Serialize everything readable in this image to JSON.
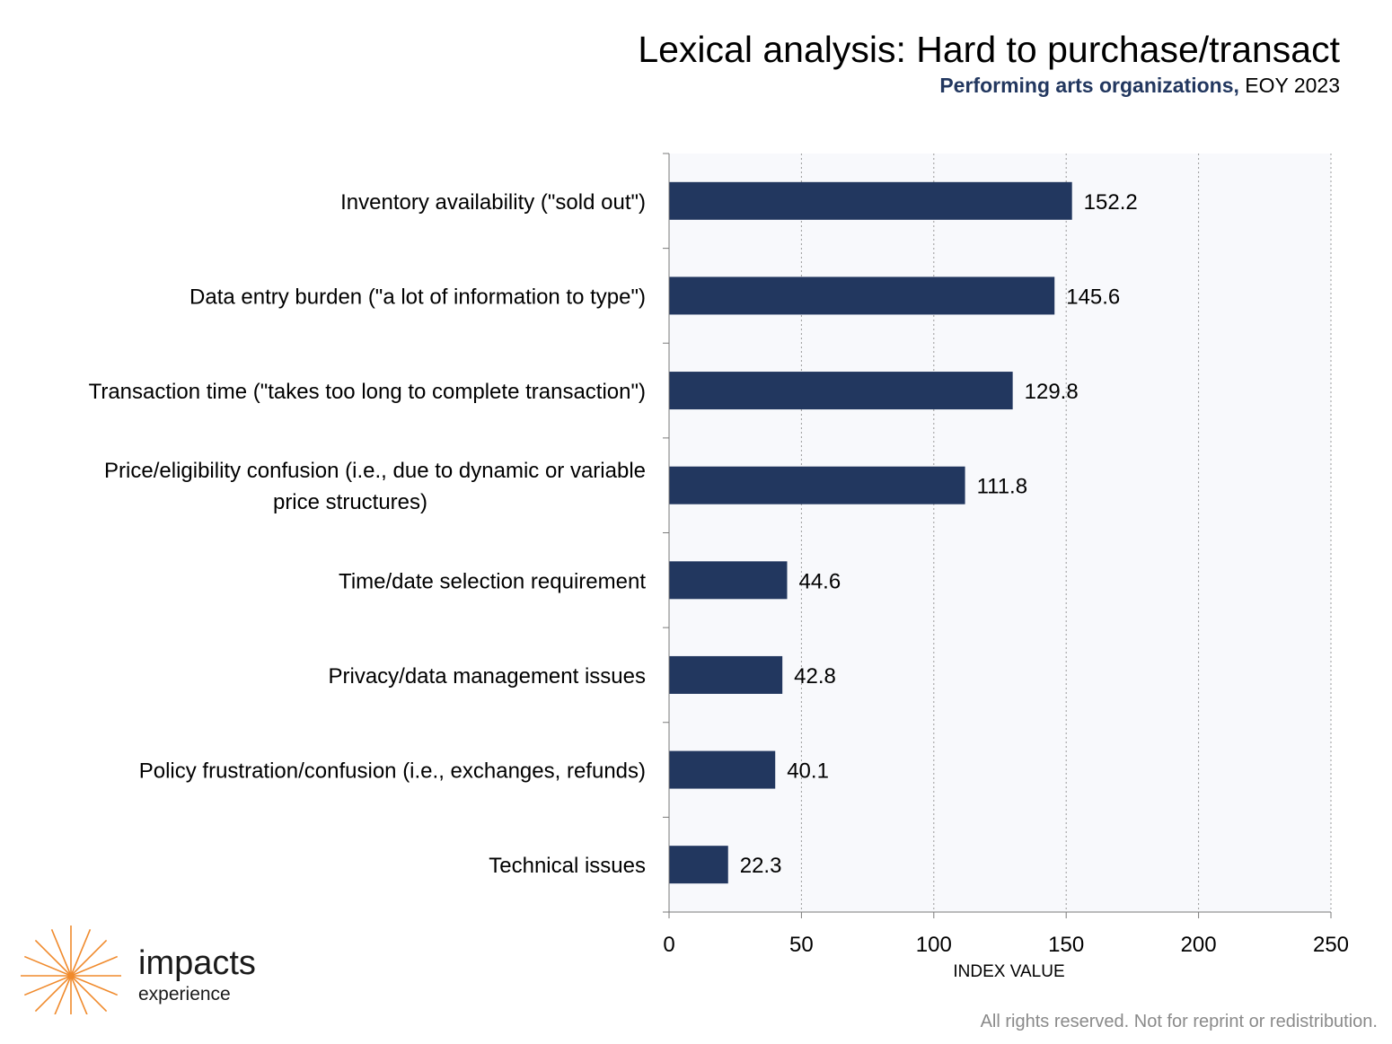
{
  "header": {
    "title": "Lexical analysis: Hard to purchase/transact",
    "subtitle_strong": "Performing arts organizations,",
    "subtitle_rest": " EOY 2023"
  },
  "chart_data": {
    "type": "bar",
    "orientation": "horizontal",
    "categories": [
      "Inventory availability (\"sold out\")",
      "Data entry burden (\"a lot of information to type\")",
      "Transaction time (\"takes too long to complete transaction\")",
      "Price/eligibility confusion (i.e., due to dynamic or variable price structures)",
      "Time/date selection requirement",
      "Privacy/data management issues",
      "Policy frustration/confusion (i.e., exchanges, refunds)",
      "Technical issues"
    ],
    "category_lines": [
      [
        "Inventory availability (\"sold out\")"
      ],
      [
        "Data entry burden (\"a lot of information to type\")"
      ],
      [
        "Transaction time (\"takes too long to complete transaction\")"
      ],
      [
        "Price/eligibility confusion (i.e., due to dynamic or variable",
        "price structures)"
      ],
      [
        "Time/date selection requirement"
      ],
      [
        "Privacy/data management issues"
      ],
      [
        "Policy frustration/confusion (i.e., exchanges, refunds)"
      ],
      [
        "Technical issues"
      ]
    ],
    "values": [
      152.2,
      145.6,
      129.8,
      111.8,
      44.6,
      42.8,
      40.1,
      22.3
    ],
    "data_labels": [
      "152.2",
      "145.6",
      "129.8",
      "111.8",
      "44.6",
      "42.8",
      "40.1",
      "22.3"
    ],
    "xlabel": "INDEX VALUE",
    "xlim": [
      0,
      250
    ],
    "xticks": [
      0,
      50,
      100,
      150,
      200,
      250
    ],
    "grid": "vertical dashed",
    "bar_color": "#22375f",
    "plot_background": "#f8f9fc"
  },
  "logo": {
    "word1": "impacts",
    "word2": "experience",
    "color": "#f08a2c"
  },
  "watermark": {
    "word1": "impacts",
    "word2": "experience"
  },
  "footer": {
    "text": "All rights reserved. Not for reprint or redistribution."
  }
}
